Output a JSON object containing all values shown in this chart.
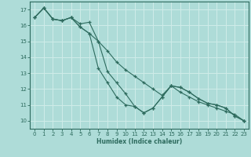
{
  "xlabel": "Humidex (Indice chaleur)",
  "bg_color": "#aedcd8",
  "grid_color": "#d0ece9",
  "line_color": "#2e6b5e",
  "xlim": [
    -0.5,
    23.5
  ],
  "ylim": [
    9.5,
    17.5
  ],
  "xticks": [
    0,
    1,
    2,
    3,
    4,
    5,
    6,
    7,
    8,
    9,
    10,
    11,
    12,
    13,
    14,
    15,
    16,
    17,
    18,
    19,
    20,
    21,
    22,
    23
  ],
  "yticks": [
    10,
    11,
    12,
    13,
    14,
    15,
    16,
    17
  ],
  "series": [
    [
      16.5,
      17.1,
      16.4,
      16.3,
      16.5,
      16.1,
      16.2,
      15.0,
      13.1,
      12.4,
      11.7,
      10.9,
      10.5,
      10.8,
      11.5,
      12.2,
      12.1,
      11.8,
      11.4,
      11.1,
      11.0,
      10.8,
      10.3,
      10.0
    ],
    [
      16.5,
      17.1,
      16.4,
      16.3,
      16.5,
      15.9,
      15.5,
      15.0,
      14.4,
      13.7,
      13.2,
      12.8,
      12.4,
      12.0,
      11.6,
      12.2,
      11.8,
      11.5,
      11.2,
      11.0,
      10.8,
      10.6,
      10.4,
      10.0
    ],
    [
      16.5,
      17.1,
      16.4,
      16.3,
      16.5,
      15.9,
      15.5,
      13.3,
      12.4,
      11.5,
      11.0,
      10.9,
      10.5,
      10.8,
      11.5,
      12.2,
      12.1,
      11.8,
      11.4,
      11.1,
      11.0,
      10.8,
      10.3,
      10.0
    ]
  ]
}
